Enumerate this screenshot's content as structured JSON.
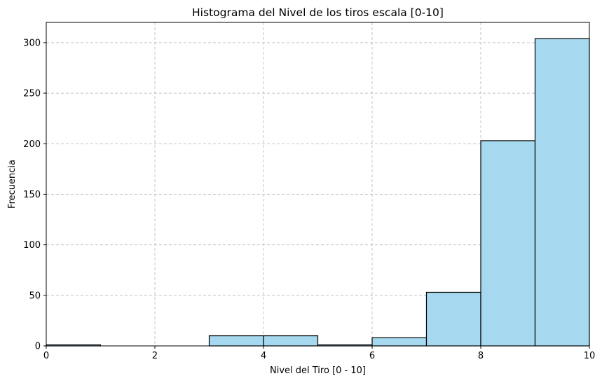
{
  "chart_data": {
    "type": "bar",
    "title": "Histograma del Nivel de los tiros escala [0-10]",
    "xlabel": "Nivel del Tiro [0 - 10]",
    "ylabel": "Frecuencia",
    "xlim": [
      0,
      10
    ],
    "ylim": [
      0,
      320
    ],
    "xticks": [
      "0",
      "2",
      "4",
      "6",
      "8",
      "10"
    ],
    "yticks": [
      "0",
      "50",
      "100",
      "150",
      "200",
      "250",
      "300"
    ],
    "bins": [
      {
        "start": 0,
        "end": 1,
        "value": 1
      },
      {
        "start": 1,
        "end": 2,
        "value": 0
      },
      {
        "start": 2,
        "end": 3,
        "value": 0
      },
      {
        "start": 3,
        "end": 4,
        "value": 10
      },
      {
        "start": 4,
        "end": 5,
        "value": 10
      },
      {
        "start": 5,
        "end": 6,
        "value": 1
      },
      {
        "start": 6,
        "end": 7,
        "value": 8
      },
      {
        "start": 7,
        "end": 8,
        "value": 53
      },
      {
        "start": 8,
        "end": 9,
        "value": 203
      },
      {
        "start": 9,
        "end": 10,
        "value": 304
      }
    ],
    "grid": true,
    "colors": {
      "bar_fill": "#a6d9ef",
      "bar_edge": "#000000",
      "grid": "#c4c4c4"
    }
  }
}
